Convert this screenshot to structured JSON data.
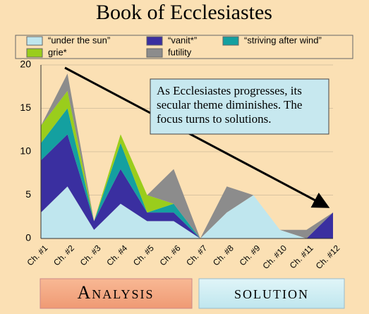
{
  "chart_data": {
    "type": "stacked-area",
    "title": "Book of Ecclesiastes",
    "categories": [
      "Ch. #1",
      "Ch. #2",
      "Ch. #3",
      "Ch. #4",
      "Ch. #5",
      "Ch. #6",
      "Ch. #7",
      "Ch. #8",
      "Ch. #9",
      "Ch. #10",
      "Ch. #11",
      "Ch. #12"
    ],
    "series": [
      {
        "name": "“under the sun”",
        "color": "#bfe6ee",
        "values": [
          3,
          6,
          1,
          4,
          2,
          2,
          0,
          3,
          5,
          1,
          0,
          0
        ]
      },
      {
        "name": "“vanit*”",
        "color": "#3a2fa0",
        "values": [
          6,
          6,
          1,
          4,
          1,
          1,
          0,
          0,
          0,
          0,
          0,
          3
        ]
      },
      {
        "name": "“striving after wind”",
        "color": "#14a0a0",
        "values": [
          2,
          3,
          0,
          3,
          0,
          1,
          0,
          0,
          0,
          0,
          0,
          0
        ]
      },
      {
        "name": "grie*",
        "color": "#9acd1c",
        "values": [
          2,
          2,
          0,
          1,
          2,
          0,
          0,
          0,
          0,
          0,
          0,
          0
        ]
      },
      {
        "name": "futility",
        "color": "#8c8c8c",
        "values": [
          0,
          2,
          0,
          0,
          0,
          4,
          0,
          3,
          0,
          0,
          1,
          0
        ]
      }
    ],
    "ylim": [
      0,
      20
    ],
    "yticks": [
      0,
      5,
      10,
      15,
      20
    ],
    "grid": true,
    "annotation": "As Ecclesiastes progresses, its secular theme diminishes. The focus turns to solutions."
  },
  "buttons": [
    "Analysis",
    "solution"
  ]
}
